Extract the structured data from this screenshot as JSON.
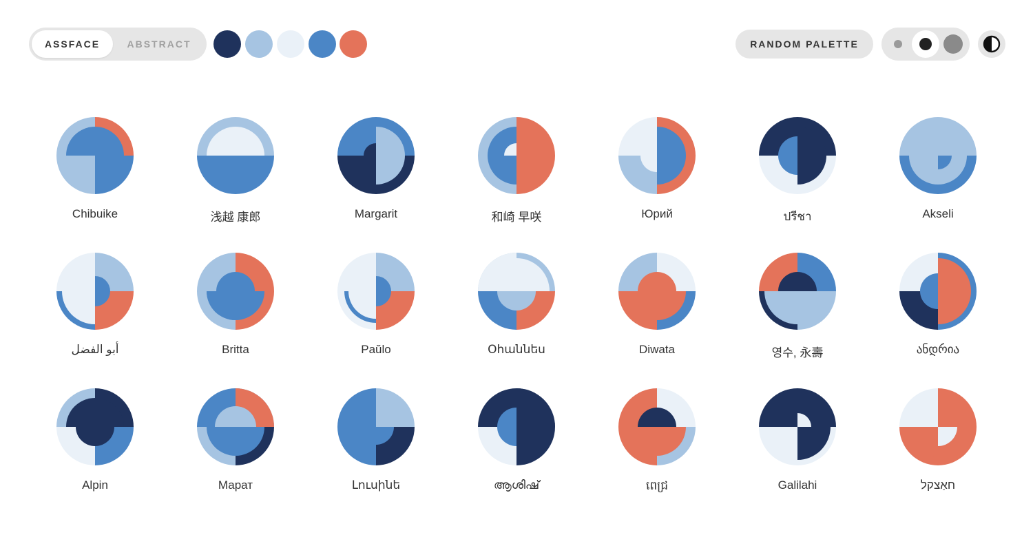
{
  "toolbar": {
    "variant_tabs": [
      {
        "label": "ASSFACE",
        "active": true
      },
      {
        "label": "ABSTRACT",
        "active": false
      }
    ],
    "palette": [
      "#1f325c",
      "#a6c4e2",
      "#eaf1f8",
      "#4b86c6",
      "#e4735a"
    ],
    "random_palette_label": "RANDOM PALETTE",
    "size_selected": "medium",
    "theme_icon": "contrast-icon"
  },
  "avatars": [
    {
      "name": "Chibuike"
    },
    {
      "name": "浅越 康郎"
    },
    {
      "name": "Margarit"
    },
    {
      "name": "和崎 早咲"
    },
    {
      "name": "Юрий"
    },
    {
      "name": "ปรีชา"
    },
    {
      "name": "Akseli"
    },
    {
      "name": "أبو الفضل"
    },
    {
      "name": "Britta"
    },
    {
      "name": "Paŭlo"
    },
    {
      "name": "Օհաննես"
    },
    {
      "name": "Diwata"
    },
    {
      "name": "영수, 永壽"
    },
    {
      "name": "ანდრია"
    },
    {
      "name": "Alpin"
    },
    {
      "name": "Марат"
    },
    {
      "name": "Լուսինե"
    },
    {
      "name": "ആശിഷ്"
    },
    {
      "name": "ពេជ្រ"
    },
    {
      "name": "Galilahi"
    },
    {
      "name": "חאַצקל"
    }
  ]
}
